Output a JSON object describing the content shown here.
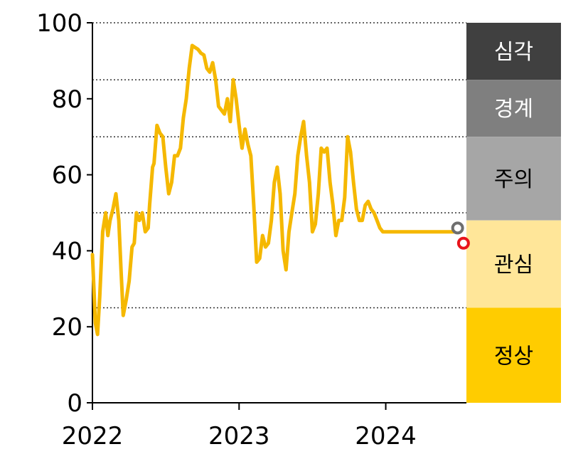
{
  "chart_data": {
    "type": "line",
    "title": "",
    "xlabel": "",
    "ylabel": "",
    "xlim": [
      2022.0,
      2024.55
    ],
    "ylim": [
      0,
      100
    ],
    "yticks": [
      0,
      20,
      40,
      60,
      80,
      100
    ],
    "xticks": [
      2022,
      2023,
      2024
    ],
    "ytick_labels": [
      "0",
      "20",
      "40",
      "60",
      "80",
      "100"
    ],
    "xtick_labels": [
      "2022",
      "2023",
      "2024"
    ],
    "gridlines": [
      25,
      50,
      70,
      85,
      100
    ],
    "grid_style": "dotted",
    "series": [
      {
        "color": "#F5B800",
        "x": [
          2022.0,
          2022.01,
          2022.02,
          2022.035,
          2022.05,
          2022.07,
          2022.09,
          2022.105,
          2022.12,
          2022.14,
          2022.16,
          2022.18,
          2022.195,
          2022.21,
          2022.23,
          2022.25,
          2022.27,
          2022.285,
          2022.3,
          2022.32,
          2022.34,
          2022.36,
          2022.38,
          2022.39,
          2022.41,
          2022.42,
          2022.44,
          2022.46,
          2022.48,
          2022.5,
          2022.52,
          2022.54,
          2022.56,
          2022.58,
          2022.6,
          2022.62,
          2022.64,
          2022.66,
          2022.68,
          2022.7,
          2022.72,
          2022.74,
          2022.76,
          2022.78,
          2022.8,
          2022.82,
          2022.84,
          2022.86,
          2022.88,
          2022.9,
          2022.92,
          2022.94,
          2022.96,
          2022.98,
          2023.0,
          2023.02,
          2023.04,
          2023.06,
          2023.08,
          2023.1,
          2023.12,
          2023.14,
          2023.16,
          2023.18,
          2023.2,
          2023.22,
          2023.24,
          2023.26,
          2023.28,
          2023.3,
          2023.32,
          2023.34,
          2023.36,
          2023.38,
          2023.4,
          2023.42,
          2023.44,
          2023.46,
          2023.48,
          2023.5,
          2023.52,
          2023.54,
          2023.56,
          2023.58,
          2023.6,
          2023.62,
          2023.64,
          2023.66,
          2023.68,
          2023.7,
          2023.72,
          2023.74,
          2023.76,
          2023.78,
          2023.8,
          2023.82,
          2023.84,
          2023.86,
          2023.88,
          2023.9,
          2023.92,
          2023.94,
          2023.96,
          2023.98,
          2024.0,
          2024.02,
          2024.04,
          2024.06,
          2024.08,
          2024.1,
          2024.12,
          2024.14,
          2024.16,
          2024.18,
          2024.2,
          2024.22,
          2024.24,
          2024.26,
          2024.28,
          2024.3,
          2024.32,
          2024.34,
          2024.36,
          2024.38,
          2024.4,
          2024.42,
          2024.44,
          2024.46,
          2024.48,
          2024.5
        ],
        "y": [
          39,
          30,
          21,
          18,
          28,
          45,
          50,
          44,
          48,
          51,
          55,
          48,
          35,
          23,
          27,
          32,
          41,
          42,
          50,
          48,
          50,
          45,
          46,
          52,
          62,
          63,
          73,
          71,
          70,
          62,
          55,
          58,
          65,
          65,
          67,
          75,
          80,
          88,
          94,
          93.5,
          93,
          92,
          91.5,
          88,
          87,
          89.5,
          85,
          78,
          77,
          76,
          80,
          74,
          85,
          80,
          73,
          67,
          72,
          68,
          65,
          52,
          37,
          38,
          44,
          41,
          42,
          48,
          58,
          62,
          55,
          40,
          35,
          45,
          50,
          55,
          65,
          70,
          74,
          65,
          58,
          45,
          47,
          55,
          67,
          66,
          67,
          58,
          52,
          44,
          48,
          48,
          54,
          70,
          66,
          58,
          51,
          48,
          48,
          52,
          53,
          51,
          50,
          48,
          46,
          45,
          45,
          45,
          45,
          45,
          45,
          45,
          45,
          45,
          45,
          45,
          45,
          45,
          45,
          45,
          45,
          45,
          45,
          45,
          45,
          45,
          45,
          45,
          45,
          45,
          45,
          45
        ]
      }
    ],
    "markers": [
      {
        "x": 2024.49,
        "y": 46,
        "color": "#6E6E6E"
      },
      {
        "x": 2024.53,
        "y": 42,
        "color": "#E8141B"
      }
    ],
    "bands": [
      {
        "label": "심각",
        "from": 85,
        "to": 100,
        "color": "#404040",
        "text_color": "#FFFFFF"
      },
      {
        "label": "경계",
        "from": 70,
        "to": 85,
        "color": "#7F7F7F",
        "text_color": "#FFFFFF"
      },
      {
        "label": "주의",
        "from": 48,
        "to": 70,
        "color": "#A6A6A6",
        "text_color": "#000000"
      },
      {
        "label": "관심",
        "from": 25,
        "to": 48,
        "color": "#FFE699",
        "text_color": "#000000"
      },
      {
        "label": "정상",
        "from": 0,
        "to": 25,
        "color": "#FFCC00",
        "text_color": "#000000"
      }
    ]
  }
}
